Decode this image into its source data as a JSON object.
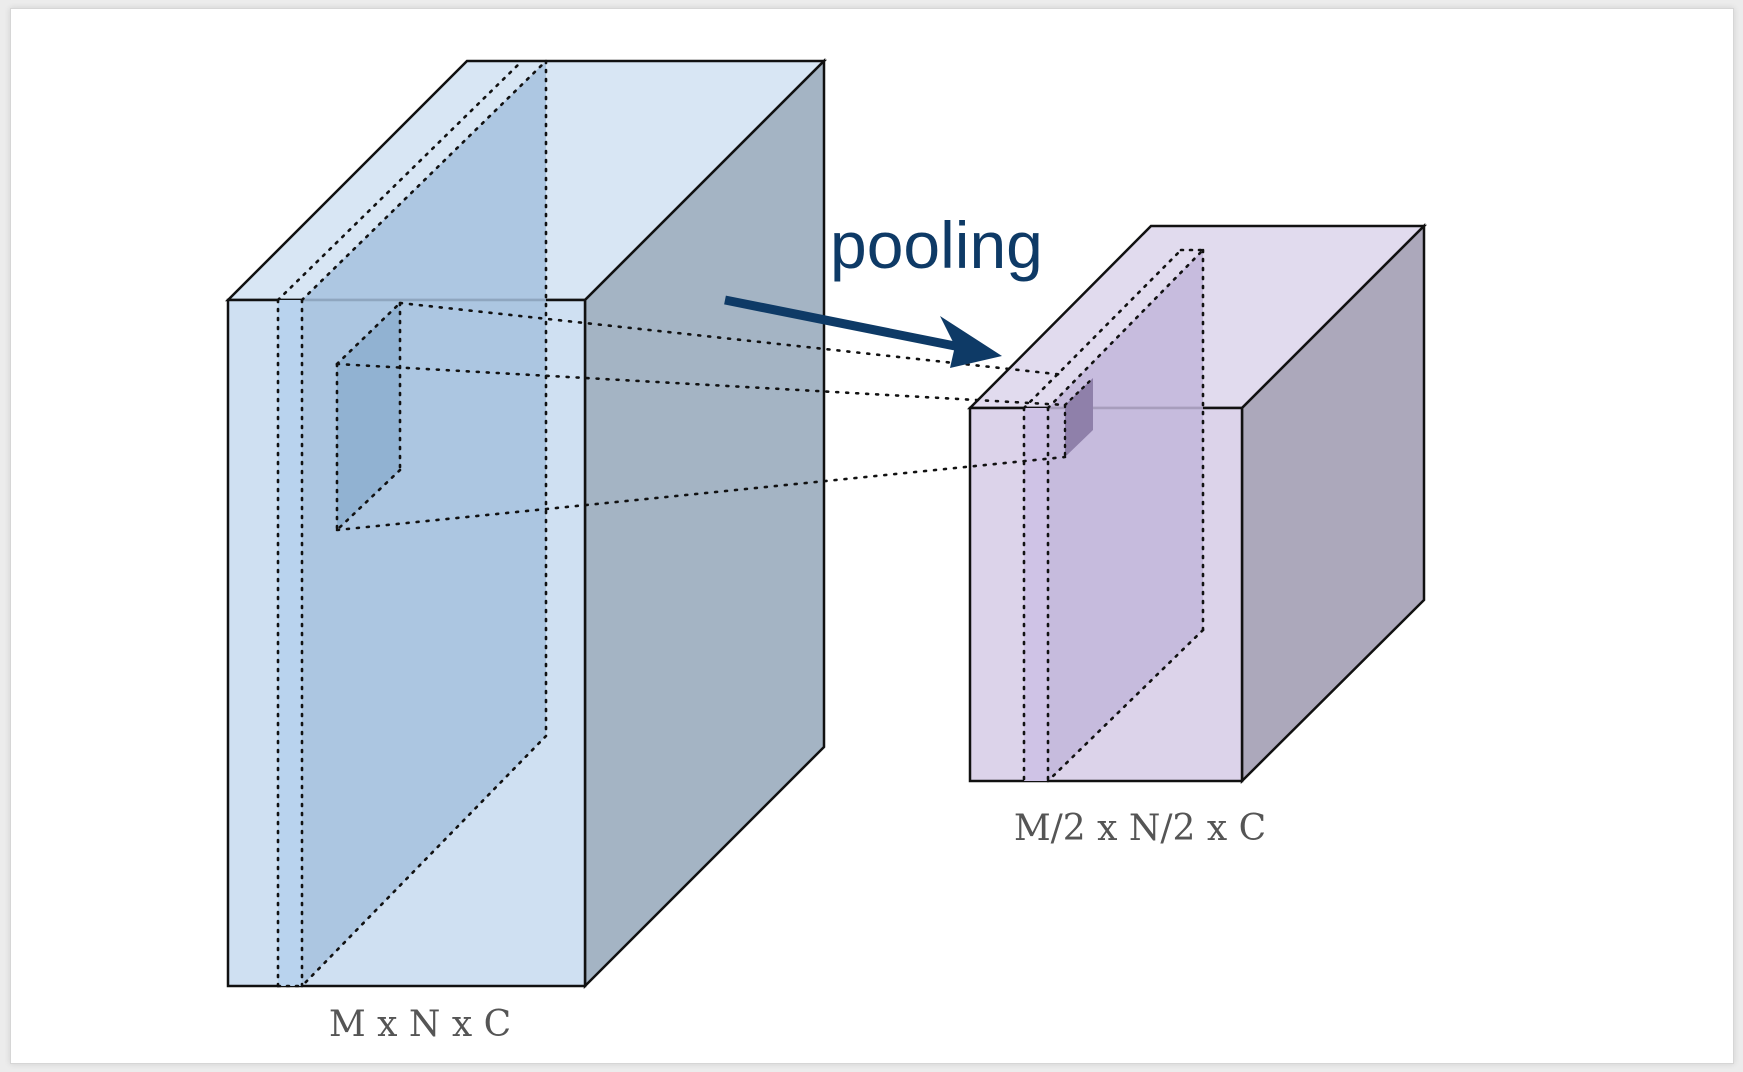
{
  "diagram": {
    "input_label": "M x N x C",
    "output_label": "M/2 x N/2 x C",
    "operation_label": "pooling"
  },
  "colors": {
    "input_front": "#cfe0f2",
    "input_top": "#d8e6f4",
    "input_side": "#a4b4c4",
    "input_slice": "#a6c1de",
    "input_window": "#8eafd0",
    "output_front": "#dcd3ea",
    "output_top": "#e1dbee",
    "output_side": "#aca8bb",
    "output_slice": "#c2b6da",
    "output_cell": "#8f80aa",
    "arrow": "#0e3a66",
    "edge": "#111111"
  }
}
